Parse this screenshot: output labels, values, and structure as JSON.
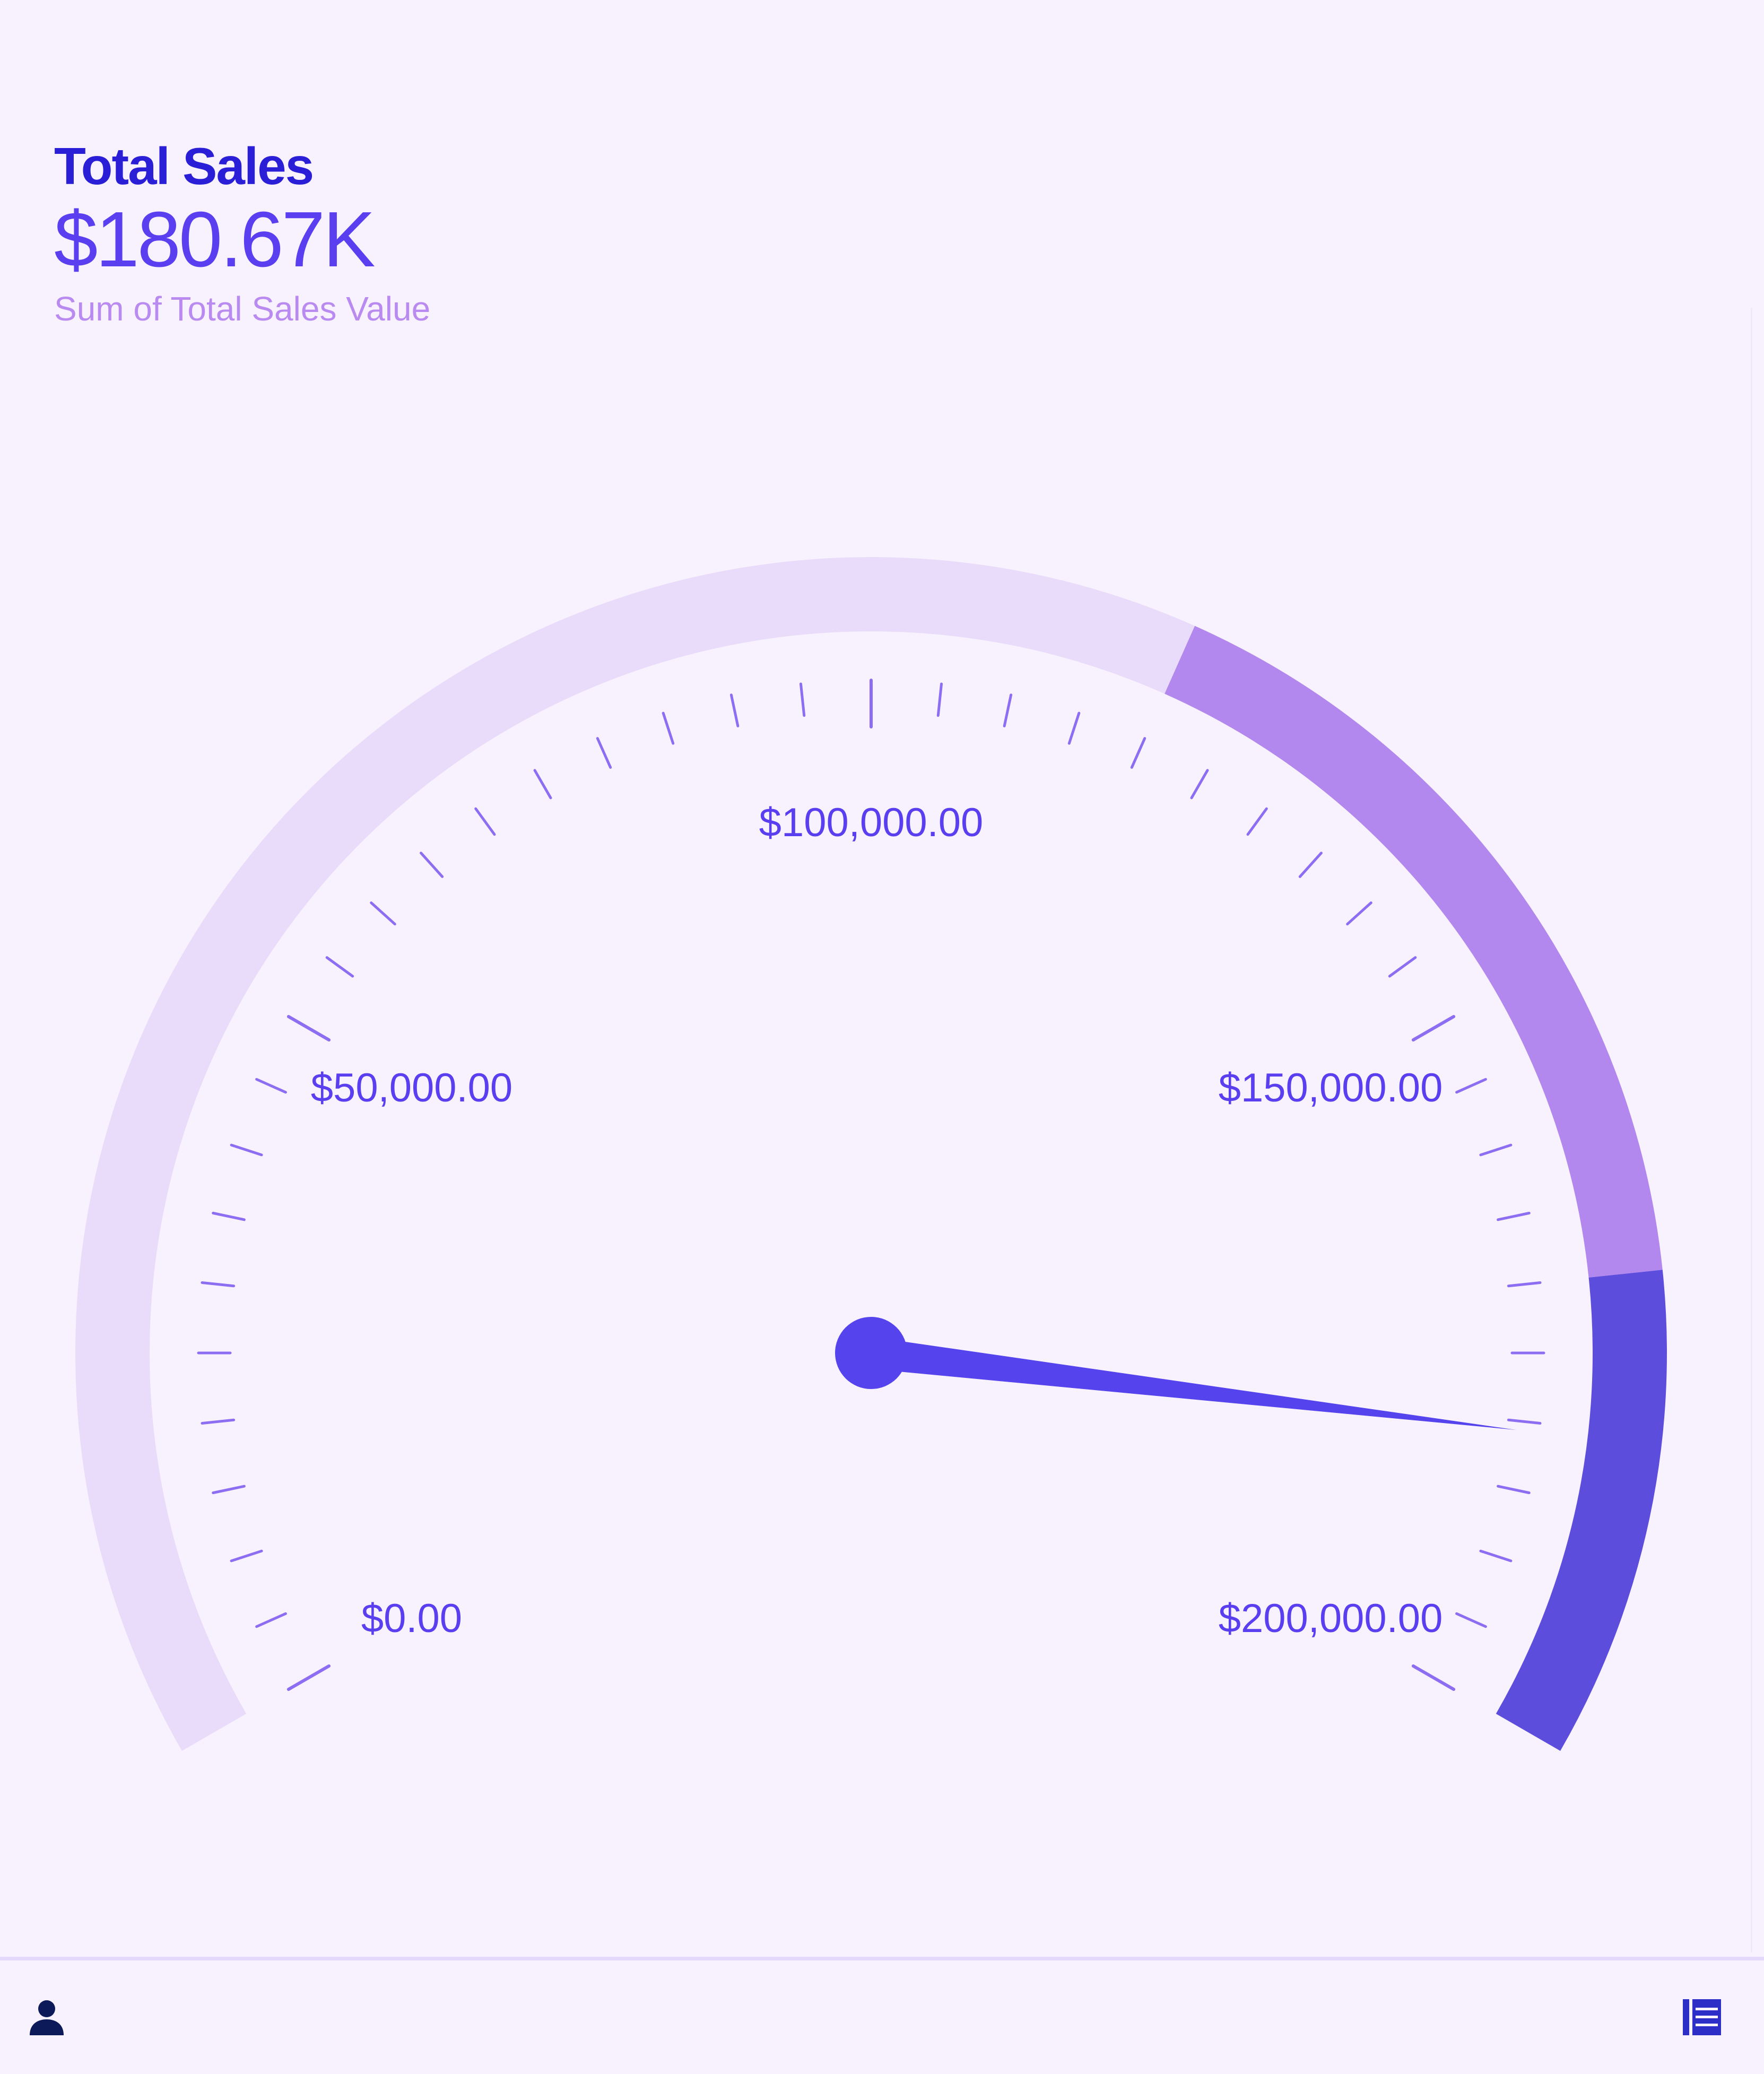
{
  "widget": {
    "title": "Total Sales",
    "value": "$180.67K",
    "subtitle": "Sum of Total Sales Value"
  },
  "chart_data": {
    "type": "gauge",
    "title": "Total Sales",
    "value": 180670,
    "value_label": "$180.67K",
    "range": [
      0,
      200000
    ],
    "major_ticks": [
      {
        "value": 0,
        "label": "$0.00"
      },
      {
        "value": 50000,
        "label": "$50,000.00"
      },
      {
        "value": 100000,
        "label": "$100,000.00"
      },
      {
        "value": 150000,
        "label": "$150,000.00"
      },
      {
        "value": 200000,
        "label": "$200,000.00"
      }
    ],
    "minor_tick_step": 5000,
    "bands": [
      {
        "from": 0,
        "to": 120000,
        "color": "#e9dcfb"
      },
      {
        "from": 120000,
        "to": 170000,
        "color": "#b287ee"
      },
      {
        "from": 170000,
        "to": 200000,
        "color": "#5d4ddd"
      }
    ],
    "needle_color": "#5544ee",
    "label_color": "#5a3ff0"
  },
  "footer": {
    "left_icon": "user-icon",
    "right_icon": "list-icon"
  }
}
